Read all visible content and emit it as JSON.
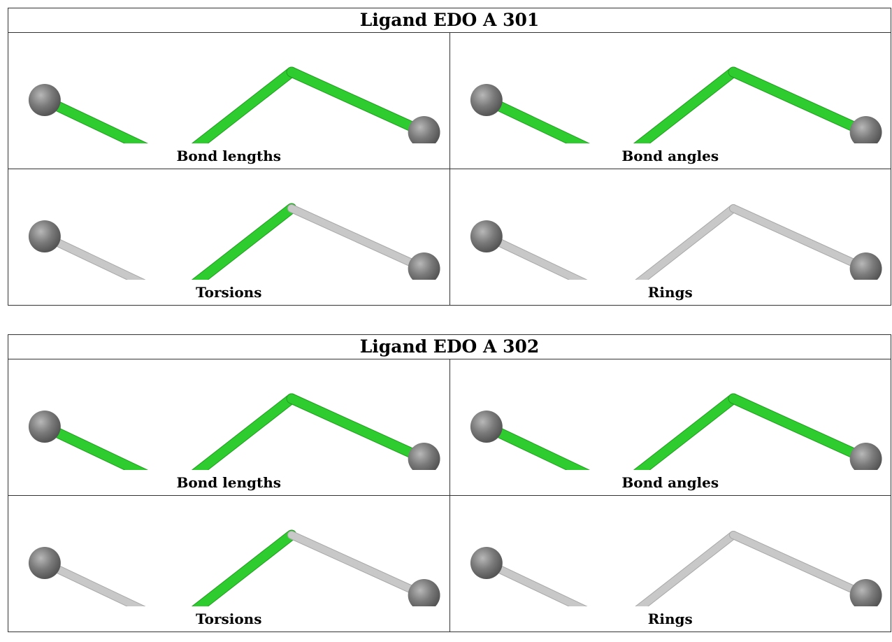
{
  "colors": {
    "highlight_bond": "#2fcc2f",
    "normal_bond": "#c8c8c8",
    "atom": "#7a7a7a",
    "border": "#333333"
  },
  "ligands": [
    {
      "title": "Ligand EDO A 301",
      "panels": [
        {
          "caption": "Bond lengths",
          "bonds": [
            "green",
            "green",
            "green"
          ]
        },
        {
          "caption": "Bond angles",
          "bonds": [
            "green",
            "green",
            "green"
          ]
        },
        {
          "caption": "Torsions",
          "bonds": [
            "gray",
            "green",
            "gray"
          ]
        },
        {
          "caption": "Rings",
          "bonds": [
            "gray",
            "gray",
            "gray"
          ]
        }
      ]
    },
    {
      "title": "Ligand EDO A 302",
      "panels": [
        {
          "caption": "Bond lengths",
          "bonds": [
            "green",
            "green",
            "green"
          ]
        },
        {
          "caption": "Bond angles",
          "bonds": [
            "green",
            "green",
            "green"
          ]
        },
        {
          "caption": "Torsions",
          "bonds": [
            "gray",
            "green",
            "gray"
          ]
        },
        {
          "caption": "Rings",
          "bonds": [
            "gray",
            "gray",
            "gray"
          ]
        }
      ]
    }
  ]
}
